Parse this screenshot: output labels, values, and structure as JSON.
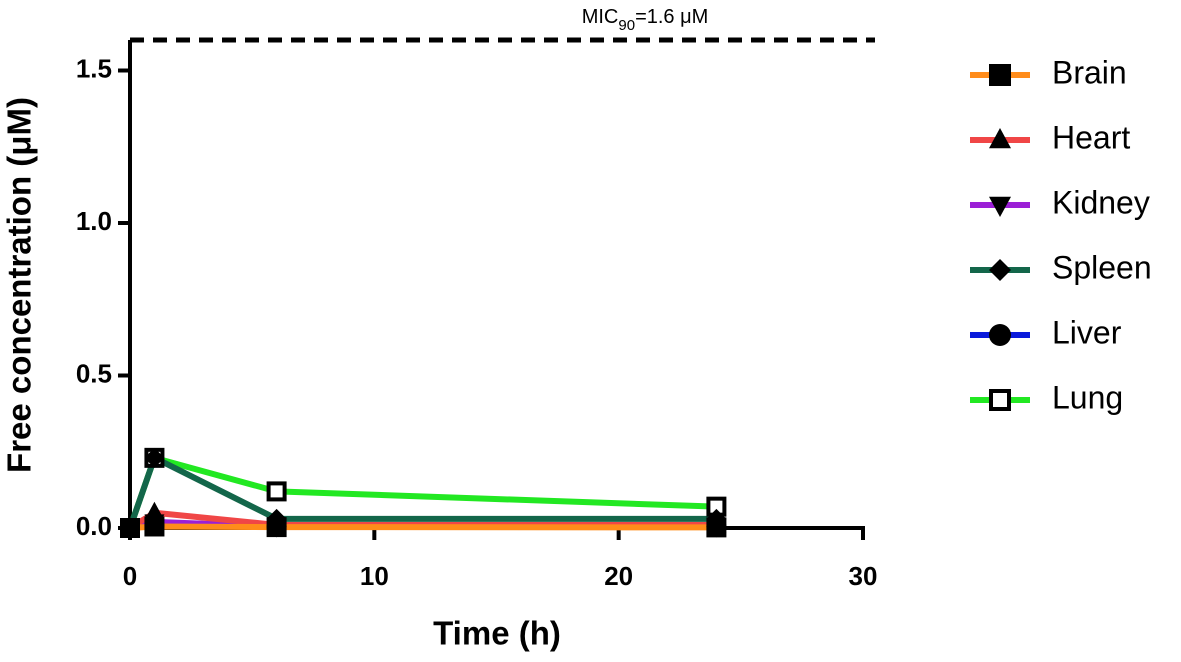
{
  "chart_data": {
    "type": "line",
    "annotation": {
      "parts": [
        "MIC",
        "90",
        "=1.6 μM"
      ],
      "value": 1.6
    },
    "xlabel": "Time (h)",
    "ylabel": "Free concentration (μM)",
    "x": [
      0,
      1,
      6,
      24
    ],
    "series": [
      {
        "name": "Brain",
        "color": "#ff8c1a",
        "marker": "square",
        "values": [
          0,
          0.005,
          0.003,
          0.002
        ]
      },
      {
        "name": "Heart",
        "color": "#f04646",
        "marker": "triangle",
        "values": [
          0,
          0.05,
          0.01,
          0.01
        ]
      },
      {
        "name": "Kidney",
        "color": "#9b1fd6",
        "marker": "triangle-down",
        "values": [
          0,
          0.02,
          0.005,
          0.005
        ]
      },
      {
        "name": "Spleen",
        "color": "#13664a",
        "marker": "diamond",
        "values": [
          0,
          0.23,
          0.03,
          0.03
        ]
      },
      {
        "name": "Liver",
        "color": "#0a1adb",
        "marker": "circle",
        "values": [
          0,
          0.01,
          0.005,
          0.005
        ]
      },
      {
        "name": "Lung",
        "color": "#22e822",
        "marker": "open-square",
        "values": [
          0,
          0.23,
          0.12,
          0.07
        ]
      }
    ],
    "xlim": [
      0,
      30
    ],
    "xticks": [
      0,
      10,
      20,
      30
    ],
    "ylim": [
      0,
      1.6
    ],
    "yticks": [
      {
        "value": 0,
        "label": "0.0"
      },
      0.5,
      {
        "value": 1,
        "label": "1.0"
      },
      1.5
    ],
    "legend": "right"
  }
}
